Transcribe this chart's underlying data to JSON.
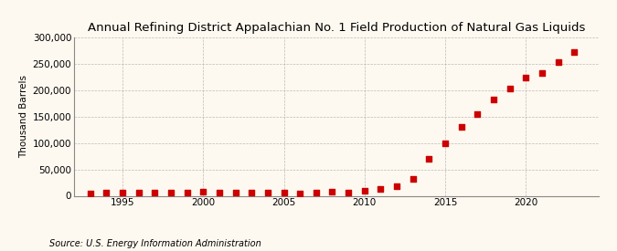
{
  "title": "Annual Refining District Appalachian No. 1 Field Production of Natural Gas Liquids",
  "ylabel": "Thousand Barrels",
  "source": "Source: U.S. Energy Information Administration",
  "background_color": "#fef9f0",
  "years": [
    1993,
    1994,
    1995,
    1996,
    1997,
    1998,
    1999,
    2000,
    2001,
    2002,
    2003,
    2004,
    2005,
    2006,
    2007,
    2008,
    2009,
    2010,
    2011,
    2012,
    2013,
    2014,
    2015,
    2016,
    2017,
    2018,
    2019,
    2020,
    2021,
    2022,
    2023
  ],
  "values": [
    5000,
    6000,
    6500,
    6000,
    6500,
    6000,
    6500,
    7000,
    6500,
    6000,
    6500,
    6000,
    5500,
    5000,
    6000,
    7000,
    6000,
    9000,
    13000,
    18000,
    32000,
    70000,
    100000,
    130000,
    155000,
    183000,
    204000,
    225000,
    233000,
    253000,
    272000
  ],
  "marker_color": "#cc0000",
  "marker_size": 4,
  "xlim": [
    1992,
    2024.5
  ],
  "ylim": [
    0,
    300000
  ],
  "yticks": [
    0,
    50000,
    100000,
    150000,
    200000,
    250000,
    300000
  ],
  "ytick_labels": [
    "0",
    "50,000",
    "100,000",
    "150,000",
    "200,000",
    "250,000",
    "300,000"
  ],
  "xticks": [
    1995,
    2000,
    2005,
    2010,
    2015,
    2020
  ],
  "title_fontsize": 9.5,
  "label_fontsize": 7.5,
  "source_fontsize": 7
}
